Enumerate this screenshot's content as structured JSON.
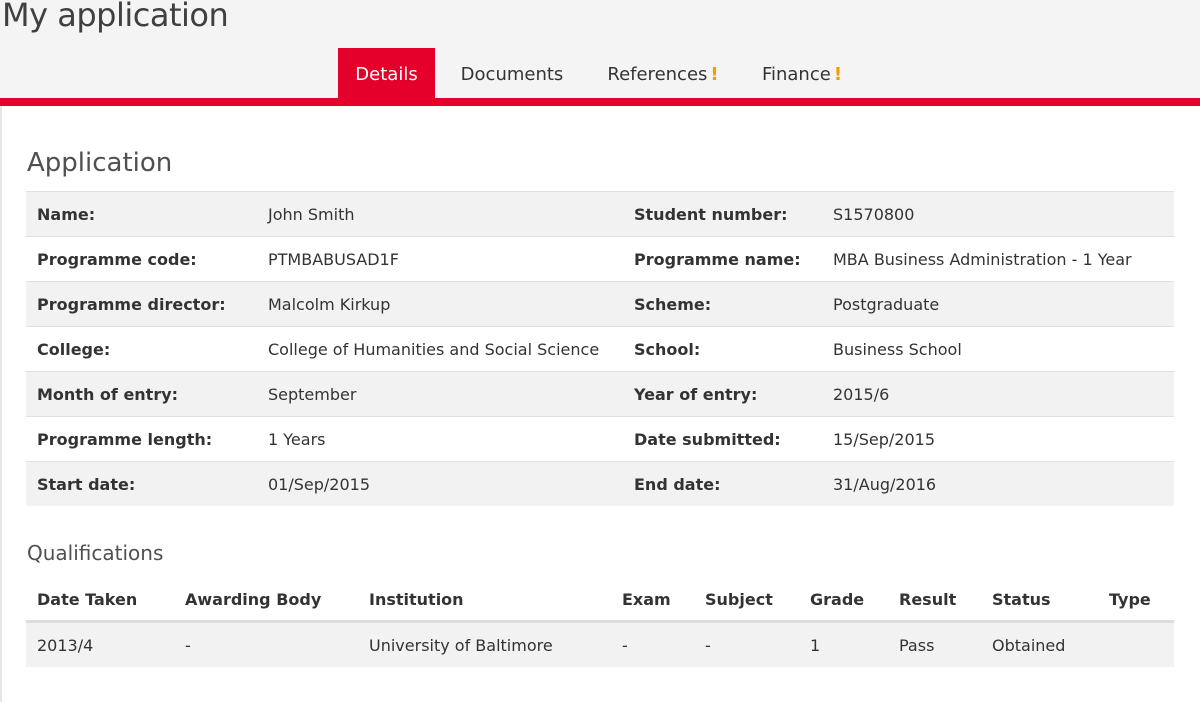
{
  "page_title": "My application",
  "tabs": [
    {
      "label": "Details",
      "active": true,
      "warning": ""
    },
    {
      "label": "Documents",
      "active": false,
      "warning": ""
    },
    {
      "label": "References",
      "active": false,
      "warning": "!"
    },
    {
      "label": "Finance",
      "active": false,
      "warning": "!"
    }
  ],
  "colors": {
    "accent": "#e4002b",
    "warning": "#f29c00",
    "row_shade": "#f2f2f2"
  },
  "application": {
    "title": "Application",
    "rows": [
      {
        "l1": "Name:",
        "v1": "John Smith",
        "l2": "Student number:",
        "v2": "S1570800"
      },
      {
        "l1": "Programme code:",
        "v1": "PTMBABUSAD1F",
        "l2": "Programme name:",
        "v2": "MBA Business Administration - 1 Year"
      },
      {
        "l1": "Programme director:",
        "v1": "Malcolm Kirkup",
        "l2": "Scheme:",
        "v2": "Postgraduate"
      },
      {
        "l1": "College:",
        "v1": "College of Humanities and Social Science",
        "l2": "School:",
        "v2": "Business School"
      },
      {
        "l1": "Month of entry:",
        "v1": "September",
        "l2": "Year of entry:",
        "v2": "2015/6"
      },
      {
        "l1": "Programme length:",
        "v1": "1 Years",
        "l2": "Date submitted:",
        "v2": "15/Sep/2015"
      },
      {
        "l1": "Start date:",
        "v1": "01/Sep/2015",
        "l2": "End date:",
        "v2": "31/Aug/2016"
      }
    ]
  },
  "qualifications": {
    "title": "Qualifications",
    "headers": [
      "Date Taken",
      "Awarding Body",
      "Institution",
      "Exam",
      "Subject",
      "Grade",
      "Result",
      "Status",
      "Type"
    ],
    "rows": [
      [
        "2013/4",
        "-",
        "University of Baltimore",
        "-",
        "-",
        "1",
        "Pass",
        "Obtained",
        ""
      ]
    ]
  }
}
